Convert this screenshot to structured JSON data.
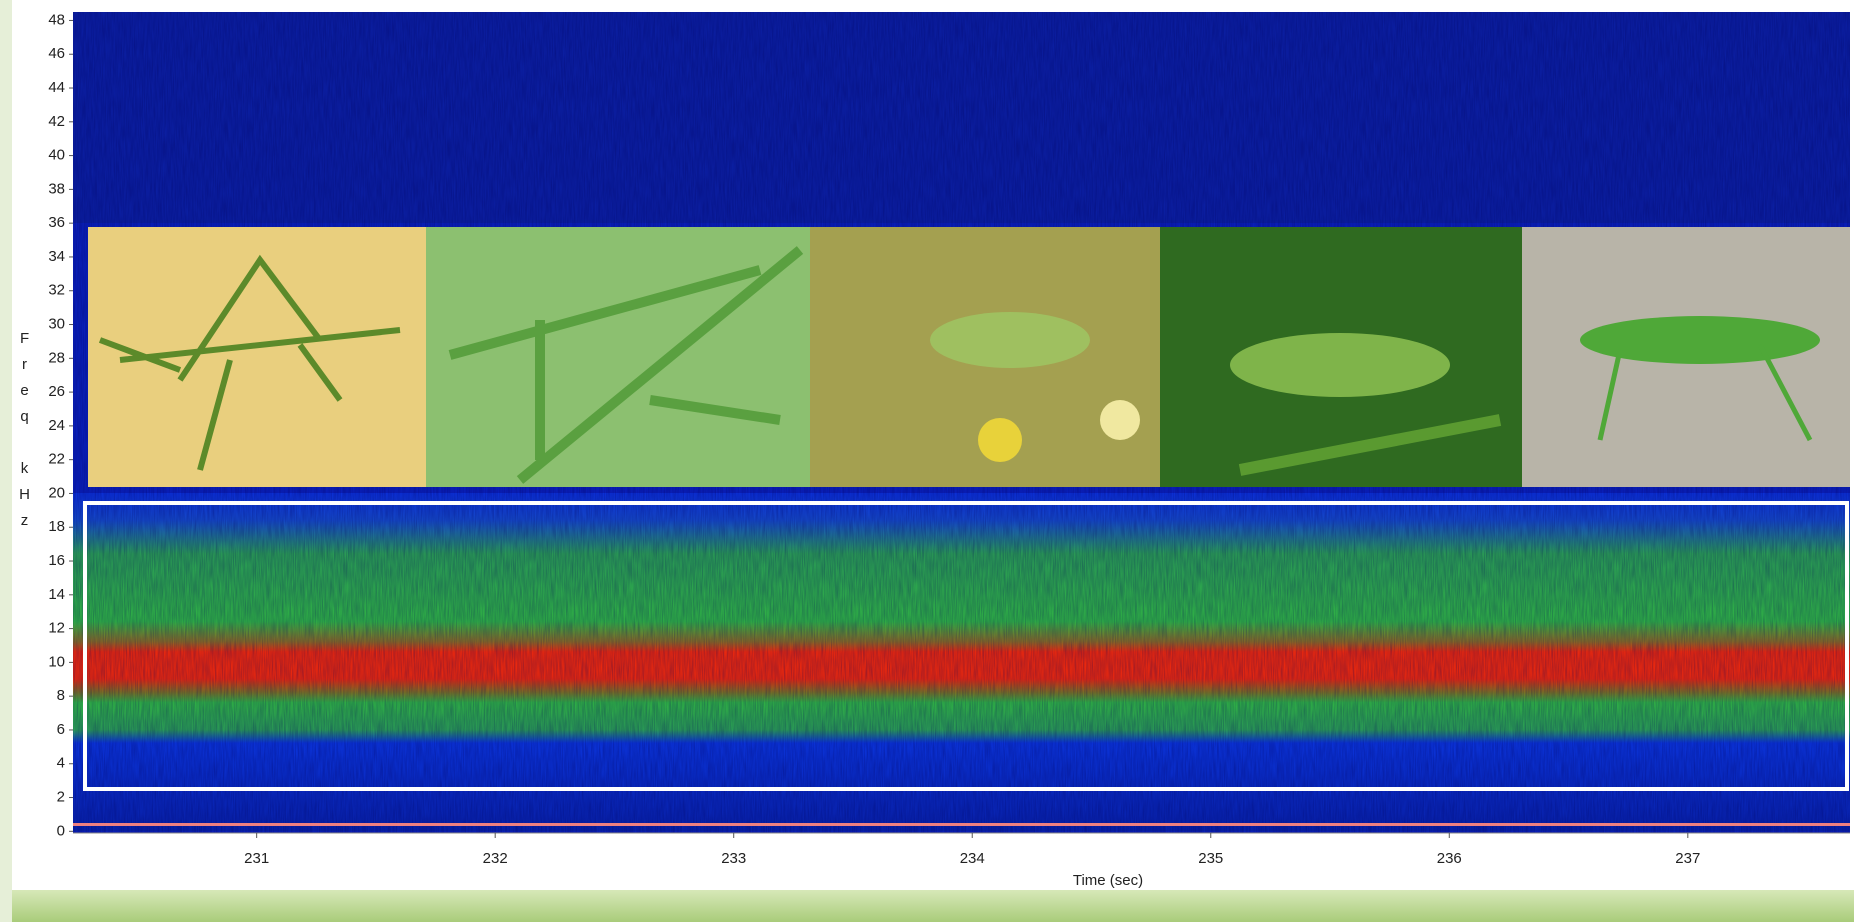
{
  "chart_data": {
    "type": "spectrogram",
    "xlabel": "Time (sec)",
    "ylabel": "Freq kHz",
    "xlim": [
      230.23,
      237.68
    ],
    "xticks": [
      231,
      232,
      233,
      234,
      235,
      236,
      237
    ],
    "ylim": [
      -0.1,
      48.5
    ],
    "yticks": [
      0,
      2,
      4,
      6,
      8,
      10,
      12,
      14,
      16,
      18,
      20,
      22,
      24,
      26,
      28,
      30,
      32,
      34,
      36,
      38,
      40,
      42,
      44,
      46,
      48
    ]
  }
}
